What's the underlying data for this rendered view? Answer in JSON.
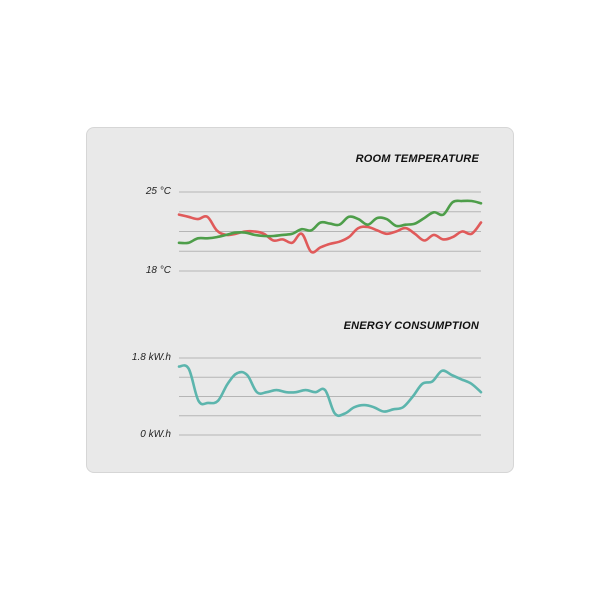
{
  "chart_data": [
    {
      "type": "line",
      "title": "ROOM TEMPERATURE",
      "y_top_label": "25 °C",
      "y_bottom_label": "18 °C",
      "ylim": [
        18,
        25
      ],
      "grid": true,
      "series": [
        {
          "color": "#e05a5a",
          "values": [
            23.0,
            22.8,
            22.6,
            22.8,
            21.6,
            21.2,
            21.3,
            21.5,
            21.5,
            21.3,
            20.7,
            20.8,
            20.5,
            21.3,
            19.7,
            20.1,
            20.4,
            20.6,
            21.0,
            21.8,
            21.9,
            21.6,
            21.3,
            21.5,
            21.8,
            21.3,
            20.7,
            21.2,
            20.8,
            21.0,
            21.5,
            21.3,
            22.3
          ]
        },
        {
          "color": "#4e9e4a",
          "values": [
            20.5,
            20.5,
            20.9,
            20.9,
            21.0,
            21.2,
            21.4,
            21.4,
            21.2,
            21.1,
            21.1,
            21.2,
            21.3,
            21.7,
            21.6,
            22.3,
            22.2,
            22.1,
            22.8,
            22.6,
            22.1,
            22.7,
            22.6,
            22.0,
            22.1,
            22.2,
            22.7,
            23.2,
            23.0,
            24.1,
            24.2,
            24.2,
            24.0
          ]
        }
      ]
    },
    {
      "type": "line",
      "title": "ENERGY CONSUMPTION",
      "y_top_label": "1.8 kW.h",
      "y_bottom_label": "0 kW.h",
      "ylim": [
        0,
        1.8
      ],
      "grid": true,
      "series": [
        {
          "color": "#5cb5ad",
          "values": [
            1.6,
            1.55,
            0.8,
            0.75,
            0.8,
            1.2,
            1.45,
            1.4,
            1.0,
            1.0,
            1.05,
            1.0,
            1.0,
            1.05,
            1.0,
            1.05,
            0.5,
            0.5,
            0.65,
            0.7,
            0.65,
            0.55,
            0.6,
            0.65,
            0.9,
            1.2,
            1.25,
            1.5,
            1.4,
            1.3,
            1.2,
            1.0
          ]
        }
      ]
    }
  ]
}
